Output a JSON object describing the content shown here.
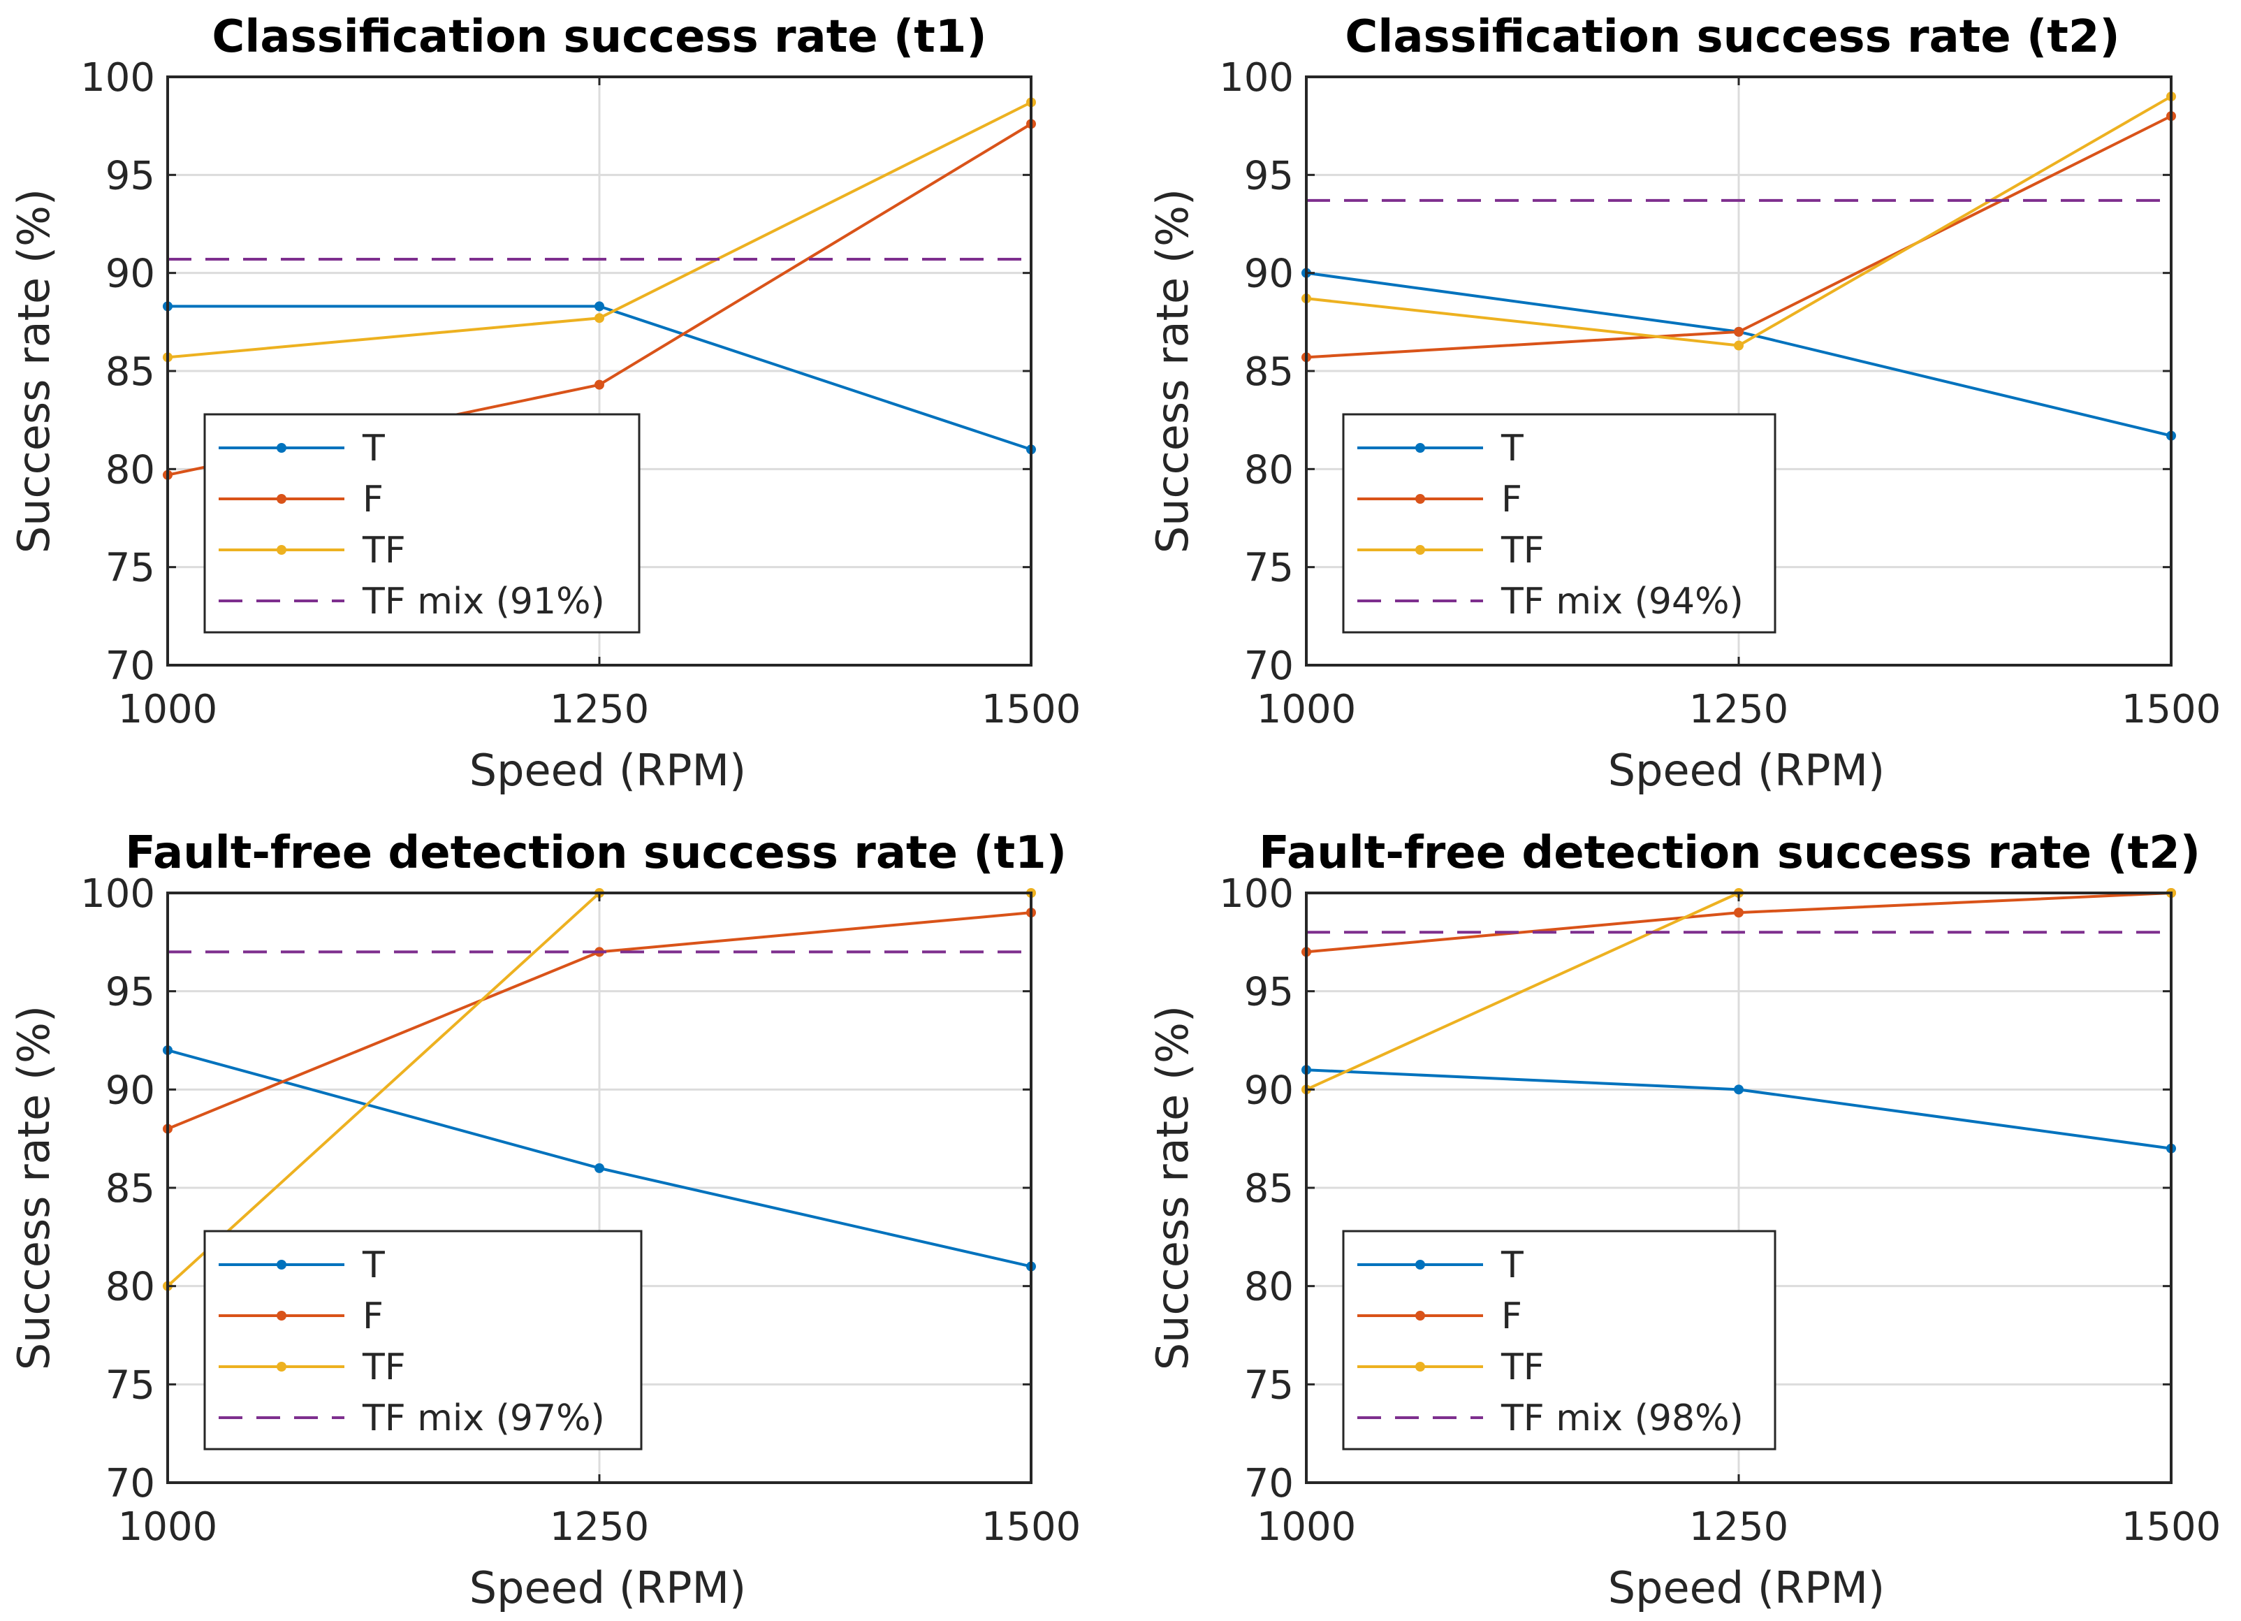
{
  "colors": {
    "T": "#0072BD",
    "F": "#D95319",
    "TF": "#EDB120",
    "TF_mix": "#7E2F8E",
    "grid": "#DCDCDC",
    "axis": "#262626"
  },
  "chart_data": [
    {
      "type": "line",
      "title": "Classification success rate (t1)",
      "xlabel": "Speed (RPM)",
      "ylabel": "Success rate (%)",
      "x": [
        1000,
        1250,
        1500
      ],
      "xticks": [
        "1000",
        "1250",
        "1500"
      ],
      "yticks": [
        "70",
        "75",
        "80",
        "85",
        "90",
        "95",
        "100"
      ],
      "xlim": [
        1000,
        1500
      ],
      "ylim": [
        70,
        100
      ],
      "grid": true,
      "legend_position": "lower-left",
      "series": [
        {
          "name": "T",
          "values": [
            88.3,
            88.3,
            81.0
          ],
          "style": "solid-marker"
        },
        {
          "name": "F",
          "values": [
            79.7,
            84.3,
            97.6
          ],
          "style": "solid-marker"
        },
        {
          "name": "TF",
          "values": [
            85.7,
            87.7,
            98.7
          ],
          "style": "solid-marker"
        },
        {
          "name": "TF mix (91%)",
          "values": [
            90.7,
            90.7,
            90.7
          ],
          "style": "dashed"
        }
      ]
    },
    {
      "type": "line",
      "title": "Classification success rate (t2)",
      "xlabel": "Speed (RPM)",
      "ylabel": "Success rate (%)",
      "x": [
        1000,
        1250,
        1500
      ],
      "xticks": [
        "1000",
        "1250",
        "1500"
      ],
      "yticks": [
        "70",
        "75",
        "80",
        "85",
        "90",
        "95",
        "100"
      ],
      "xlim": [
        1000,
        1500
      ],
      "ylim": [
        70,
        100
      ],
      "grid": true,
      "legend_position": "lower-left",
      "series": [
        {
          "name": "T",
          "values": [
            90.0,
            87.0,
            81.7
          ],
          "style": "solid-marker"
        },
        {
          "name": "F",
          "values": [
            85.7,
            87.0,
            98.0
          ],
          "style": "solid-marker"
        },
        {
          "name": "TF",
          "values": [
            88.7,
            86.3,
            99.0
          ],
          "style": "solid-marker"
        },
        {
          "name": "TF mix (94%)",
          "values": [
            93.7,
            93.7,
            93.7
          ],
          "style": "dashed"
        }
      ]
    },
    {
      "type": "line",
      "title": "Fault-free detection success rate (t1)",
      "xlabel": "Speed (RPM)",
      "ylabel": "Success rate (%)",
      "x": [
        1000,
        1250,
        1500
      ],
      "xticks": [
        "1000",
        "1250",
        "1500"
      ],
      "yticks": [
        "70",
        "75",
        "80",
        "85",
        "90",
        "95",
        "100"
      ],
      "xlim": [
        1000,
        1500
      ],
      "ylim": [
        70,
        100
      ],
      "grid": true,
      "legend_position": "lower-left",
      "series": [
        {
          "name": "T",
          "values": [
            92,
            86,
            81
          ],
          "style": "solid-marker"
        },
        {
          "name": "F",
          "values": [
            88,
            97,
            99
          ],
          "style": "solid-marker"
        },
        {
          "name": "TF",
          "values": [
            80,
            100,
            100
          ],
          "style": "solid-marker"
        },
        {
          "name": "TF mix (97%)",
          "values": [
            97,
            97,
            97
          ],
          "style": "dashed"
        }
      ]
    },
    {
      "type": "line",
      "title": "Fault-free detection success rate (t2)",
      "xlabel": "Speed (RPM)",
      "ylabel": "Success rate (%)",
      "x": [
        1000,
        1250,
        1500
      ],
      "xticks": [
        "1000",
        "1250",
        "1500"
      ],
      "yticks": [
        "70",
        "75",
        "80",
        "85",
        "90",
        "95",
        "100"
      ],
      "xlim": [
        1000,
        1500
      ],
      "ylim": [
        70,
        100
      ],
      "grid": true,
      "legend_position": "lower-left",
      "series": [
        {
          "name": "T",
          "values": [
            91,
            90,
            87
          ],
          "style": "solid-marker"
        },
        {
          "name": "F",
          "values": [
            97,
            99,
            100
          ],
          "style": "solid-marker"
        },
        {
          "name": "TF",
          "values": [
            90,
            100,
            100
          ],
          "style": "solid-marker"
        },
        {
          "name": "TF mix (98%)",
          "values": [
            98,
            98,
            98
          ],
          "style": "dashed"
        }
      ]
    }
  ]
}
